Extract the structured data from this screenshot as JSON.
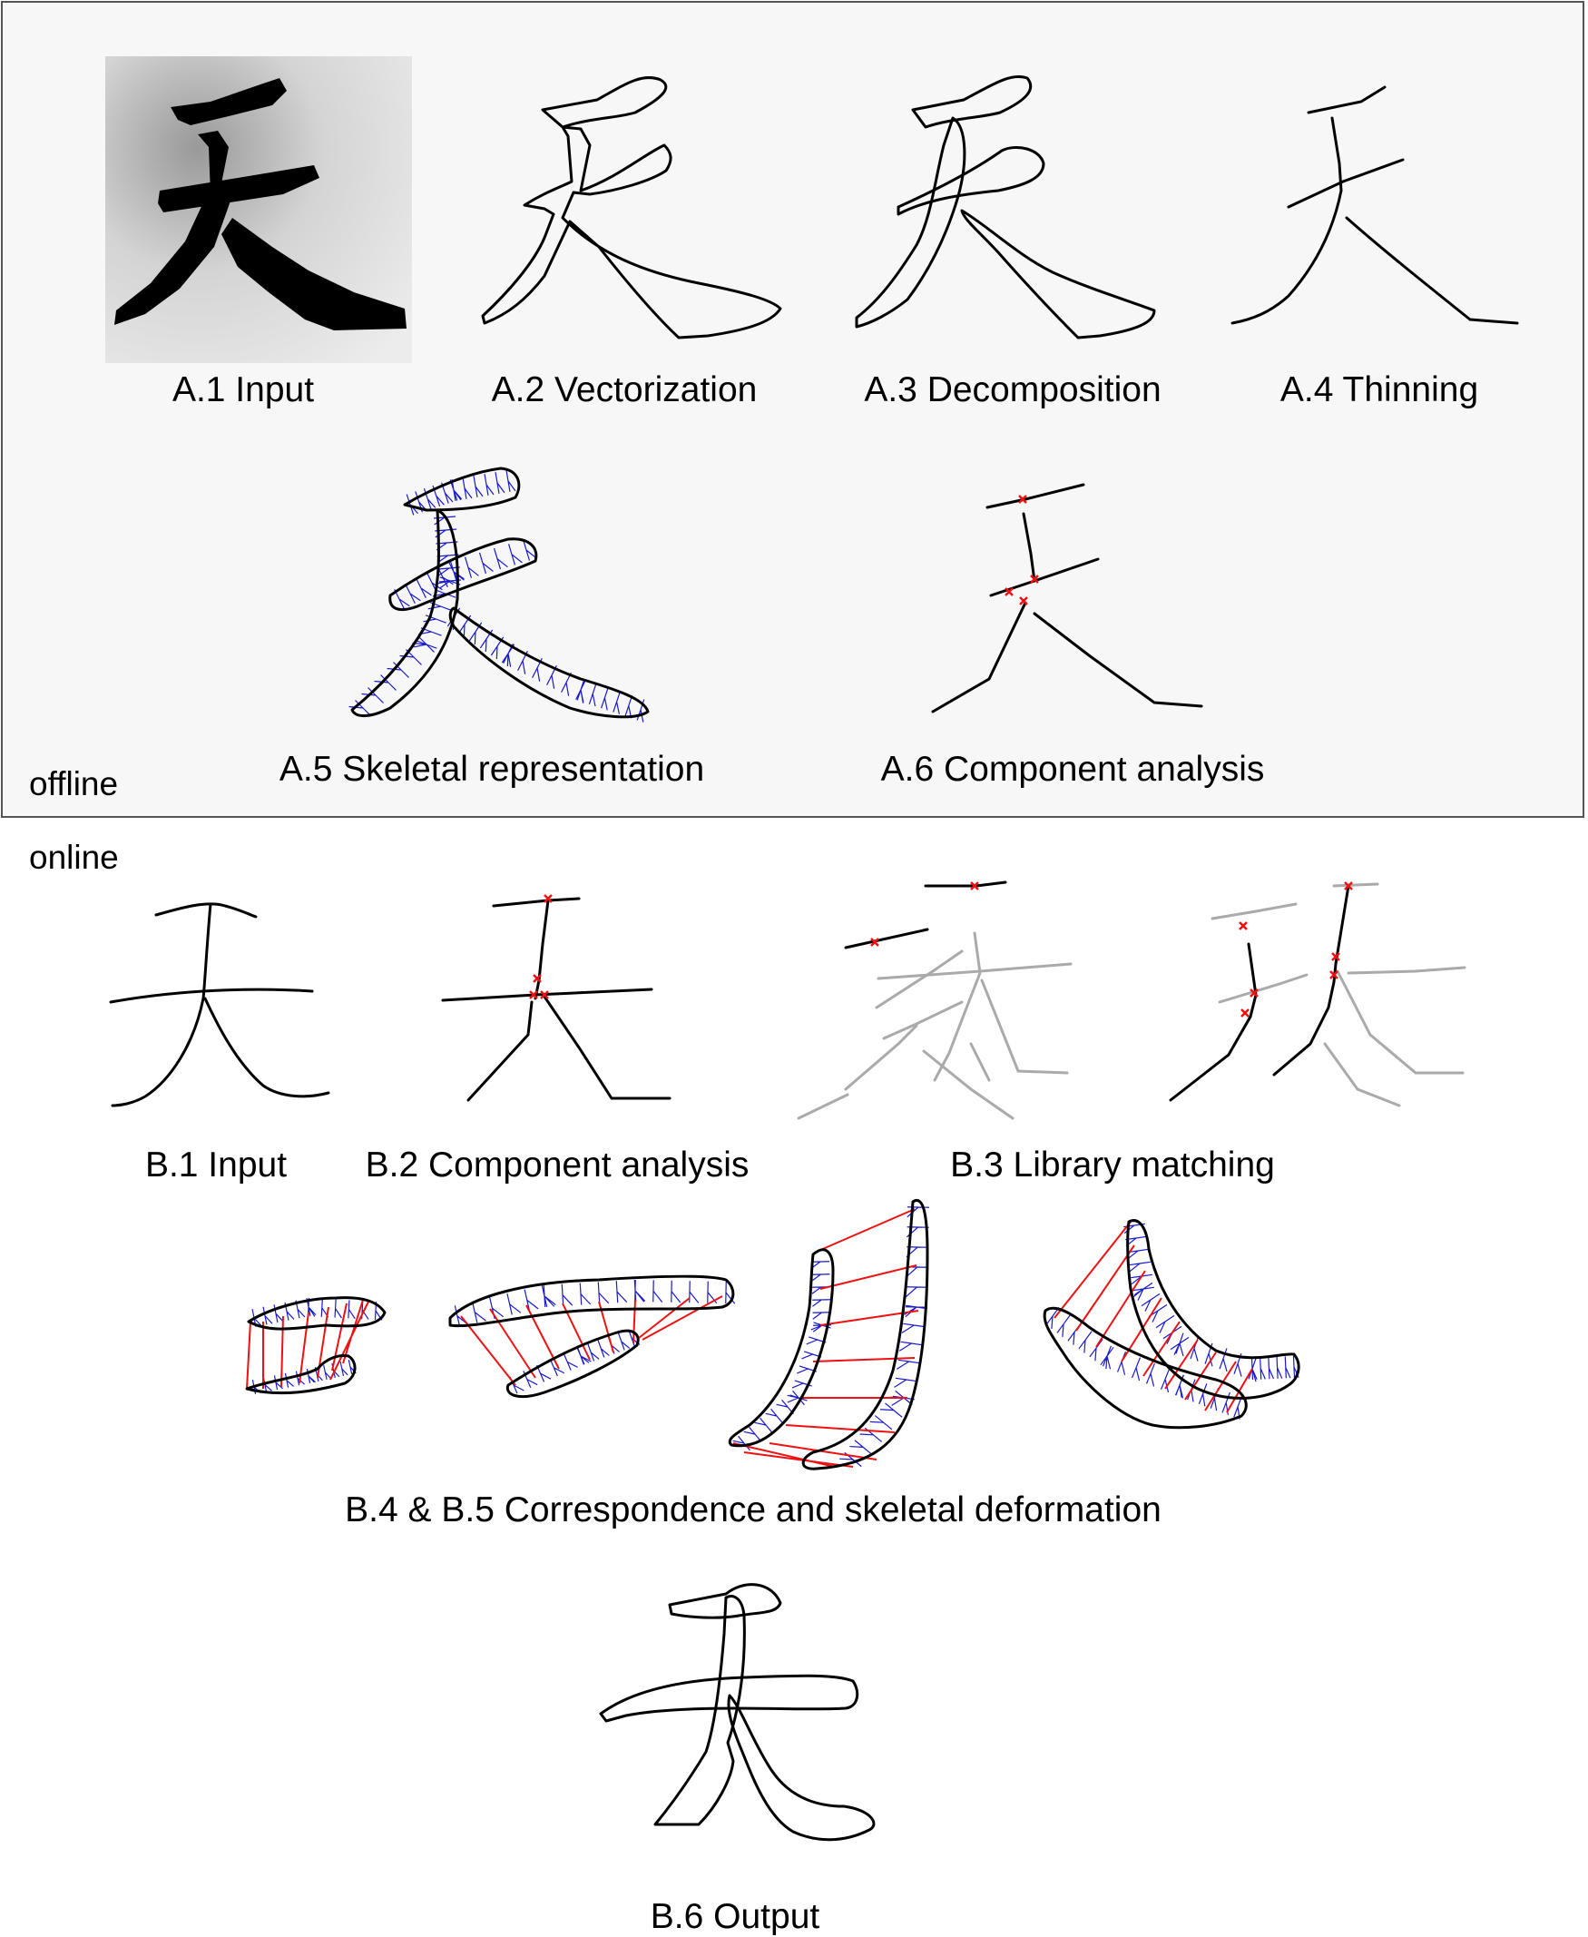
{
  "glyph": "天",
  "colors": {
    "panel_background": "#f7f7f7",
    "panel_border": "#555555",
    "stroke": "#000000",
    "skeleton_fan": "#1a1acc",
    "marker": "#ee1111",
    "library_gray": "#aaaaaa"
  },
  "sections": {
    "offline": "offline",
    "online": "online"
  },
  "captions": {
    "a1": "A.1 Input",
    "a2": "A.2 Vectorization",
    "a3": "A.3 Decomposition",
    "a4": "A.4 Thinning",
    "a5": "A.5 Skeletal representation",
    "a6": "A.6 Component analysis",
    "b1": "B.1 Input",
    "b2": "B.2 Component analysis",
    "b3": "B.3 Library matching",
    "b45": "B.4 & B.5 Correspondence and skeletal deformation",
    "b6": "B.6 Output"
  }
}
